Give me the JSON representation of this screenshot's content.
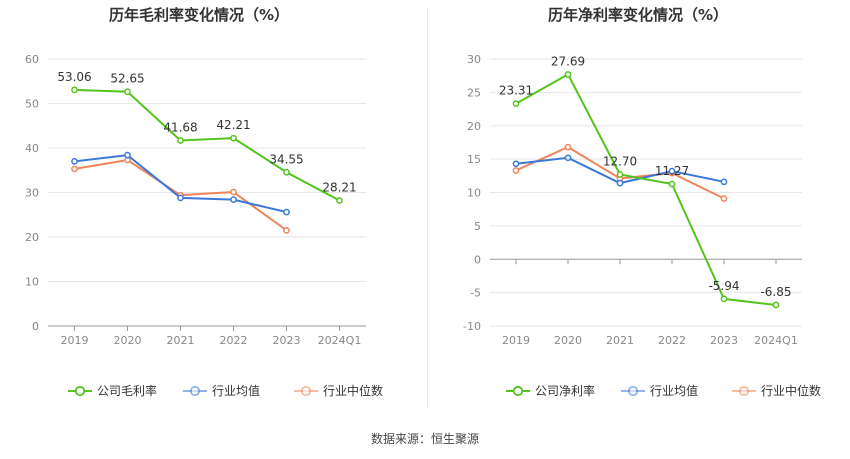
{
  "source_note": "数据来源：恒生聚源",
  "chart_data": [
    {
      "type": "line",
      "title": "历年毛利率变化情况（%）",
      "categories": [
        "2019",
        "2020",
        "2021",
        "2022",
        "2023",
        "2024Q1"
      ],
      "ylim": [
        0,
        60
      ],
      "yticks": [
        0,
        10,
        20,
        30,
        40,
        50,
        60
      ],
      "grid": true,
      "legend_position": "bottom",
      "series": [
        {
          "name": "公司毛利率",
          "color": "#52c41a",
          "values": [
            53.06,
            52.65,
            41.68,
            42.21,
            34.55,
            28.21
          ],
          "labels": [
            "53.06",
            "52.65",
            "41.68",
            "42.21",
            "34.55",
            "28.21"
          ]
        },
        {
          "name": "行业均值",
          "color": "#3b78d8",
          "values": [
            37.0,
            38.4,
            28.8,
            28.4,
            25.6,
            null
          ]
        },
        {
          "name": "行业中位数",
          "color": "#f0845a",
          "values": [
            35.3,
            37.3,
            29.4,
            30.1,
            21.5,
            null
          ]
        }
      ]
    },
    {
      "type": "line",
      "title": "历年净利率变化情况（%）",
      "categories": [
        "2019",
        "2020",
        "2021",
        "2022",
        "2023",
        "2024Q1"
      ],
      "ylim": [
        -10,
        30
      ],
      "yticks": [
        -10,
        -5,
        0,
        5,
        10,
        15,
        20,
        25,
        30
      ],
      "grid": true,
      "legend_position": "bottom",
      "series": [
        {
          "name": "公司净利率",
          "color": "#52c41a",
          "values": [
            23.31,
            27.69,
            12.7,
            11.27,
            -5.94,
            -6.85
          ],
          "labels": [
            "23.31",
            "27.69",
            "12.70",
            "11.27",
            "-5.94",
            "-6.85"
          ]
        },
        {
          "name": "行业均值",
          "color": "#3b78d8",
          "values": [
            14.3,
            15.2,
            11.4,
            13.2,
            11.6,
            null
          ]
        },
        {
          "name": "行业中位数",
          "color": "#f0845a",
          "values": [
            13.3,
            16.8,
            12.1,
            12.9,
            9.1,
            null
          ]
        }
      ]
    }
  ]
}
